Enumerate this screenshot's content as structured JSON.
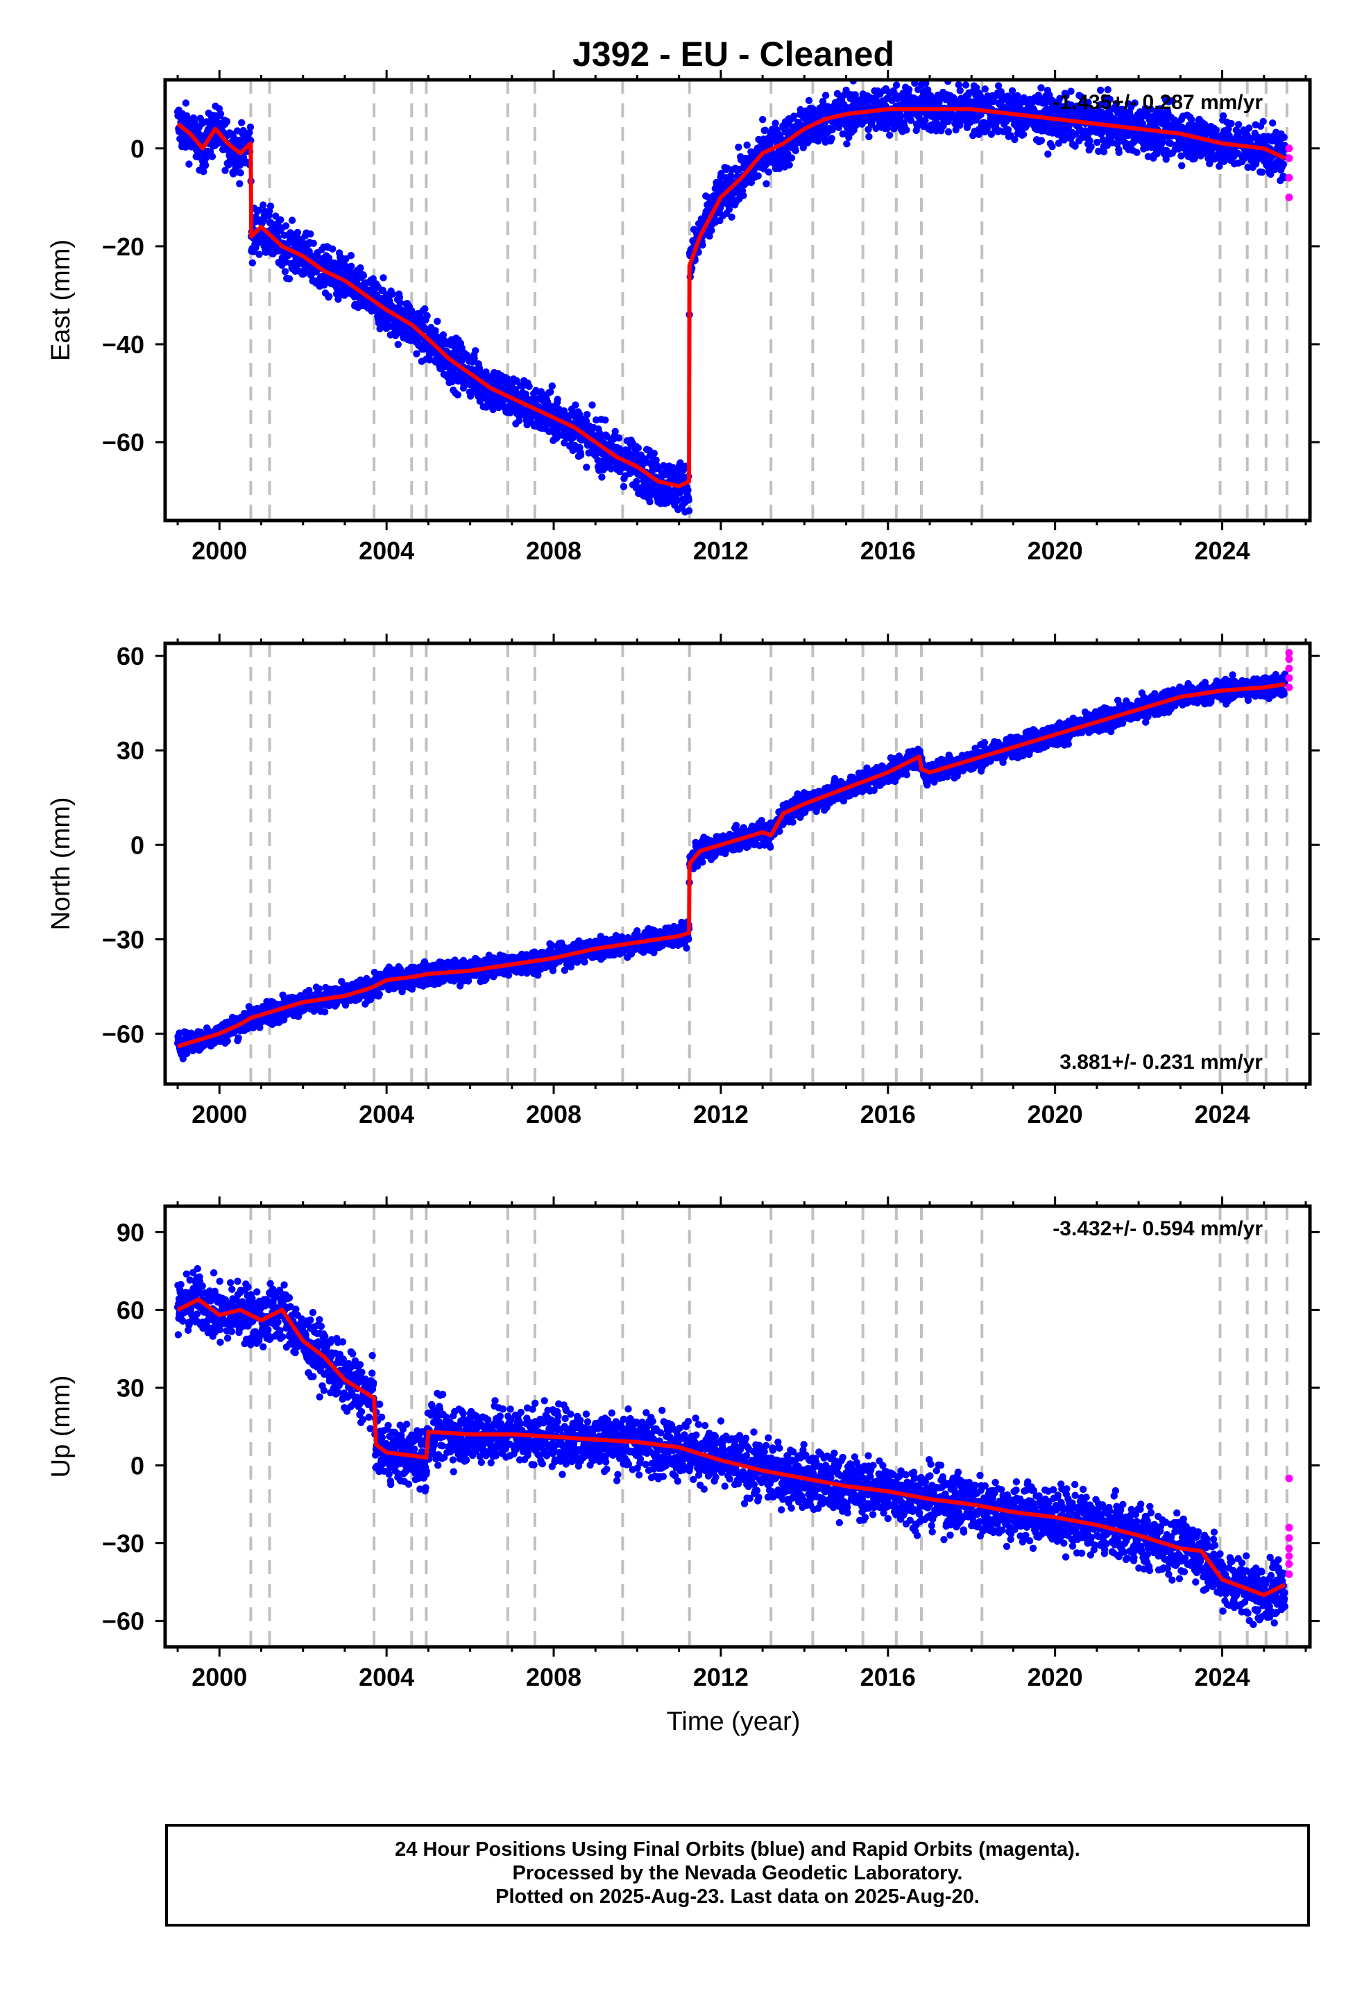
{
  "chart_data": {
    "type": "scatter",
    "title": "J392  - EU - Cleaned",
    "xlabel": "Time (year)",
    "xlim": [
      1998.7,
      2026.1
    ],
    "xticks": [
      2000,
      2004,
      2008,
      2012,
      2016,
      2020,
      2024
    ],
    "x_minor_ticks_every": 1,
    "equipment_change_epochs": [
      2000.75,
      2001.2,
      2003.7,
      2004.6,
      2004.95,
      2006.9,
      2007.55,
      2009.65,
      2011.25,
      2013.2,
      2014.2,
      2015.4,
      2016.2,
      2016.8,
      2018.25,
      2023.95,
      2024.6,
      2025.05,
      2025.55
    ],
    "styles": {
      "final_color": "#0000ff",
      "rapid_color": "#ff00ff",
      "model_color": "#ff0000",
      "break_line_color": "#c0c0c0"
    },
    "panels": [
      {
        "component": "East",
        "ylabel": "East (mm)",
        "ylim": [
          -76,
          14
        ],
        "yticks": [
          0,
          -20,
          -40,
          -60
        ],
        "rate_text": "-1.435+/- 0.287 mm/yr",
        "rate_position": "top-right",
        "model": [
          [
            1999.0,
            5
          ],
          [
            1999.3,
            3
          ],
          [
            1999.6,
            0
          ],
          [
            1999.9,
            4
          ],
          [
            2000.2,
            1
          ],
          [
            2000.5,
            -1
          ],
          [
            2000.75,
            1
          ],
          [
            2000.76,
            -18
          ],
          [
            2001.0,
            -16
          ],
          [
            2001.5,
            -20
          ],
          [
            2002.0,
            -22
          ],
          [
            2002.5,
            -25
          ],
          [
            2003.0,
            -27
          ],
          [
            2003.5,
            -30
          ],
          [
            2004.0,
            -33
          ],
          [
            2004.6,
            -36
          ],
          [
            2005.0,
            -39
          ],
          [
            2005.5,
            -43
          ],
          [
            2006.0,
            -46
          ],
          [
            2006.5,
            -49
          ],
          [
            2007.0,
            -51
          ],
          [
            2007.5,
            -53
          ],
          [
            2008.0,
            -55
          ],
          [
            2008.5,
            -57
          ],
          [
            2009.0,
            -60
          ],
          [
            2009.5,
            -63
          ],
          [
            2010.0,
            -65
          ],
          [
            2010.5,
            -68
          ],
          [
            2011.0,
            -69
          ],
          [
            2011.24,
            -68
          ],
          [
            2011.25,
            -24
          ],
          [
            2011.5,
            -18
          ],
          [
            2012.0,
            -10
          ],
          [
            2012.5,
            -6
          ],
          [
            2013.0,
            -1
          ],
          [
            2013.5,
            1
          ],
          [
            2014.0,
            4
          ],
          [
            2014.5,
            6
          ],
          [
            2015.0,
            7
          ],
          [
            2016.0,
            8
          ],
          [
            2017.0,
            8
          ],
          [
            2018.0,
            8
          ],
          [
            2019.0,
            7
          ],
          [
            2020.0,
            6
          ],
          [
            2021.0,
            5
          ],
          [
            2022.0,
            4
          ],
          [
            2023.0,
            3
          ],
          [
            2024.0,
            1
          ],
          [
            2025.0,
            0
          ],
          [
            2025.5,
            -2
          ]
        ],
        "rapid": [
          [
            2025.6,
            -2
          ],
          [
            2025.6,
            0
          ],
          [
            2025.6,
            -6
          ],
          [
            2025.6,
            -10
          ]
        ],
        "scatter": 3.5
      },
      {
        "component": "North",
        "ylabel": "North (mm)",
        "ylim": [
          -76,
          64
        ],
        "yticks": [
          60,
          30,
          0,
          -30,
          -60
        ],
        "rate_text": "3.881+/- 0.231 mm/yr",
        "rate_position": "bottom-right",
        "model": [
          [
            1999.0,
            -64
          ],
          [
            1999.5,
            -62
          ],
          [
            2000.0,
            -60
          ],
          [
            2000.5,
            -57
          ],
          [
            2000.75,
            -55
          ],
          [
            2001.0,
            -54
          ],
          [
            2001.5,
            -52
          ],
          [
            2002.0,
            -50
          ],
          [
            2002.5,
            -49
          ],
          [
            2003.0,
            -48
          ],
          [
            2003.5,
            -46
          ],
          [
            2003.7,
            -45
          ],
          [
            2004.0,
            -43
          ],
          [
            2004.6,
            -42
          ],
          [
            2005.0,
            -41
          ],
          [
            2006.0,
            -40
          ],
          [
            2007.0,
            -38
          ],
          [
            2008.0,
            -36
          ],
          [
            2009.0,
            -33
          ],
          [
            2010.0,
            -31
          ],
          [
            2011.0,
            -29
          ],
          [
            2011.24,
            -28
          ],
          [
            2011.25,
            -6
          ],
          [
            2011.5,
            -2
          ],
          [
            2012.0,
            0
          ],
          [
            2012.5,
            2
          ],
          [
            2013.0,
            4
          ],
          [
            2013.2,
            3
          ],
          [
            2013.5,
            10
          ],
          [
            2014.0,
            13
          ],
          [
            2015.0,
            18
          ],
          [
            2016.0,
            23
          ],
          [
            2016.75,
            28
          ],
          [
            2016.8,
            24
          ],
          [
            2017.0,
            23
          ],
          [
            2017.5,
            25
          ],
          [
            2018.0,
            27
          ],
          [
            2019.0,
            31
          ],
          [
            2020.0,
            35
          ],
          [
            2021.0,
            39
          ],
          [
            2022.0,
            43
          ],
          [
            2023.0,
            47
          ],
          [
            2024.0,
            49
          ],
          [
            2025.0,
            50
          ],
          [
            2025.5,
            51
          ]
        ],
        "rapid": [
          [
            2025.6,
            50
          ],
          [
            2025.6,
            53
          ],
          [
            2025.6,
            56
          ],
          [
            2025.6,
            59
          ],
          [
            2025.6,
            61
          ]
        ],
        "scatter": 2.5
      },
      {
        "component": "Up",
        "ylabel": "Up (mm)",
        "ylim": [
          -70,
          100
        ],
        "yticks": [
          90,
          60,
          30,
          0,
          -30,
          -60
        ],
        "rate_text": "-3.432+/- 0.594 mm/yr",
        "rate_position": "top-right",
        "model": [
          [
            1999.0,
            60
          ],
          [
            1999.5,
            64
          ],
          [
            2000.0,
            58
          ],
          [
            2000.5,
            60
          ],
          [
            2001.0,
            56
          ],
          [
            2001.5,
            60
          ],
          [
            2002.0,
            48
          ],
          [
            2002.5,
            42
          ],
          [
            2003.0,
            33
          ],
          [
            2003.5,
            28
          ],
          [
            2003.7,
            26
          ],
          [
            2003.75,
            8
          ],
          [
            2004.0,
            5
          ],
          [
            2004.5,
            4
          ],
          [
            2004.95,
            3
          ],
          [
            2005.0,
            13
          ],
          [
            2006.0,
            12
          ],
          [
            2007.0,
            12
          ],
          [
            2008.0,
            11
          ],
          [
            2009.0,
            10
          ],
          [
            2010.0,
            9
          ],
          [
            2011.0,
            7
          ],
          [
            2012.0,
            2
          ],
          [
            2013.0,
            -2
          ],
          [
            2014.0,
            -5
          ],
          [
            2015.0,
            -8
          ],
          [
            2016.0,
            -10
          ],
          [
            2017.0,
            -13
          ],
          [
            2018.0,
            -15
          ],
          [
            2019.0,
            -18
          ],
          [
            2020.0,
            -20
          ],
          [
            2021.0,
            -23
          ],
          [
            2022.0,
            -27
          ],
          [
            2023.0,
            -32
          ],
          [
            2023.5,
            -33
          ],
          [
            2024.0,
            -44
          ],
          [
            2024.5,
            -47
          ],
          [
            2025.0,
            -50
          ],
          [
            2025.5,
            -46
          ]
        ],
        "rapid": [
          [
            2025.6,
            -5
          ],
          [
            2025.6,
            -24
          ],
          [
            2025.6,
            -28
          ],
          [
            2025.6,
            -32
          ],
          [
            2025.6,
            -35
          ],
          [
            2025.6,
            -38
          ],
          [
            2025.6,
            -42
          ]
        ],
        "scatter": 8
      }
    ]
  },
  "footer": {
    "line1": "24 Hour Positions Using Final Orbits (blue) and Rapid Orbits (magenta).",
    "line2": "Processed by the Nevada Geodetic Laboratory.",
    "line3": "Plotted on 2025-Aug-23. Last data on 2025-Aug-20."
  }
}
